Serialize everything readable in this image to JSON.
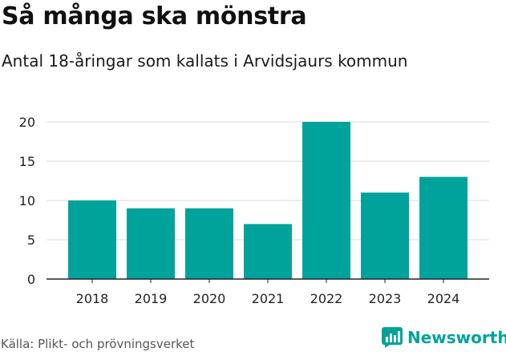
{
  "header": {
    "title": "Så många ska mönstra",
    "subtitle": "Antal 18-åringar som kallats i Arvidsjaurs kommun"
  },
  "footer": {
    "source": "Källa: Plikt- och prövningsverket",
    "brand": "Newsworthy"
  },
  "colors": {
    "bar": "#00a39b",
    "grid": "#d9d9d9",
    "axis": "#222222",
    "brand": "#00a39b"
  },
  "chart_data": {
    "type": "bar",
    "title": "Så många ska mönstra",
    "subtitle": "Antal 18-åringar som kallats i Arvidsjaurs kommun",
    "xlabel": "",
    "ylabel": "",
    "categories": [
      "2018",
      "2019",
      "2020",
      "2021",
      "2022",
      "2023",
      "2024"
    ],
    "values": [
      10,
      9,
      9,
      7,
      20,
      11,
      13
    ],
    "ylim": [
      0,
      20
    ],
    "yticks": [
      0,
      5,
      10,
      15,
      20
    ],
    "grid": true,
    "legend": "none"
  }
}
